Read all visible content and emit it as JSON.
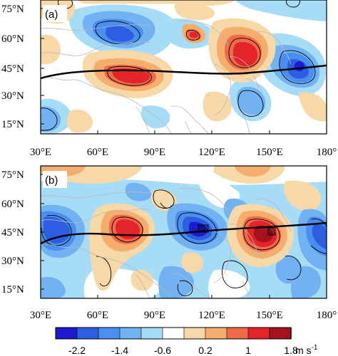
{
  "panels": [
    {
      "label": "(a)",
      "lat_ticks": [
        "75°N",
        "60°N",
        "45°N",
        "30°N",
        "15°N"
      ],
      "lon_ticks": [
        "30°E",
        "60°E",
        "90°E",
        "120°E",
        "150°E",
        "180°"
      ]
    },
    {
      "label": "(b)",
      "lat_ticks": [
        "75°N",
        "60°N",
        "45°N",
        "30°N",
        "15°N"
      ],
      "lon_ticks": [
        "30°E",
        "60°E",
        "90°E",
        "120°E",
        "150°E",
        "180°"
      ]
    }
  ],
  "colorbar": {
    "colors": [
      "#1d1ad0",
      "#2d5de0",
      "#4a8ef0",
      "#72b2f2",
      "#a7dcf6",
      "#ffffff",
      "#f7d8a8",
      "#f4ad6c",
      "#ef6a4a",
      "#e3242b",
      "#a5121e"
    ],
    "tick_labels": [
      "-2.2",
      "-1.4",
      "-0.6",
      "0.2",
      "1",
      "1.8"
    ],
    "unit": "m s",
    "unit_exp": "-1"
  },
  "colors": {
    "coast": "#b8b8b8",
    "jet_axis": "#000000",
    "contour": "#000000"
  }
}
